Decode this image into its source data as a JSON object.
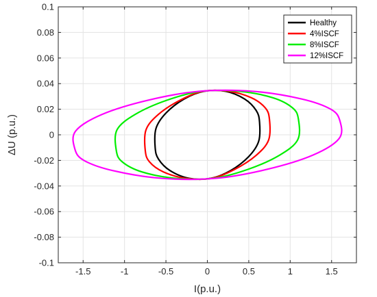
{
  "chart_data": {
    "type": "line",
    "title": "",
    "xlabel": "I(p.u.)",
    "ylabel": "ΔU (p.u.)",
    "xlim": [
      -1.8,
      1.8
    ],
    "ylim": [
      -0.1,
      0.1
    ],
    "xticks": [
      -1.5,
      -1,
      -0.5,
      0,
      0.5,
      1,
      1.5
    ],
    "xtick_labels": [
      "-1.5",
      "-1",
      "-0.5",
      "0",
      "0.5",
      "1",
      "1.5"
    ],
    "yticks": [
      -0.1,
      -0.08,
      -0.06,
      -0.04,
      -0.02,
      0,
      0.02,
      0.04,
      0.06,
      0.08,
      0.1
    ],
    "ytick_labels": [
      "-0.1",
      "-0.08",
      "-0.06",
      "-0.04",
      "-0.02",
      "0",
      "0.02",
      "0.04",
      "0.06",
      "0.08",
      "0.1"
    ],
    "grid": true,
    "legend_position": "top-right",
    "series": [
      {
        "name": "Healthy",
        "color": "#000000",
        "x": [
          0.63,
          0.59,
          0.45,
          0.22,
          -0.04,
          -0.28,
          -0.5,
          -0.62,
          -0.63,
          -0.59,
          -0.45,
          -0.22,
          0.04,
          0.28,
          0.5,
          0.62,
          0.63
        ],
        "y": [
          0.01,
          0.019,
          0.028,
          0.034,
          0.034,
          0.028,
          0.017,
          0.005,
          -0.01,
          -0.019,
          -0.028,
          -0.034,
          -0.034,
          -0.028,
          -0.017,
          -0.005,
          0.01
        ]
      },
      {
        "name": "4%ISCF",
        "color": "#ff0000",
        "x": [
          0.75,
          0.7,
          0.53,
          0.26,
          -0.05,
          -0.33,
          -0.59,
          -0.74,
          -0.75,
          -0.7,
          -0.53,
          -0.26,
          0.05,
          0.33,
          0.59,
          0.74,
          0.75
        ],
        "y": [
          0.012,
          0.021,
          0.029,
          0.034,
          0.034,
          0.027,
          0.016,
          0.004,
          -0.012,
          -0.021,
          -0.029,
          -0.034,
          -0.034,
          -0.027,
          -0.016,
          -0.004,
          0.012
        ]
      },
      {
        "name": "8%ISCF",
        "color": "#00ee00",
        "x": [
          1.1,
          1.03,
          0.79,
          0.38,
          -0.07,
          -0.49,
          -0.87,
          -1.09,
          -1.1,
          -1.03,
          -0.79,
          -0.38,
          0.07,
          0.49,
          0.87,
          1.09,
          1.1
        ],
        "y": [
          0.012,
          0.021,
          0.029,
          0.034,
          0.034,
          0.027,
          0.016,
          0.004,
          -0.012,
          -0.021,
          -0.029,
          -0.034,
          -0.034,
          -0.027,
          -0.016,
          -0.004,
          0.012
        ]
      },
      {
        "name": "12%ISCF",
        "color": "#ff00ff",
        "x": [
          1.6,
          1.49,
          1.14,
          0.55,
          -0.1,
          -0.72,
          -1.27,
          -1.59,
          -1.6,
          -1.49,
          -1.14,
          -0.55,
          0.1,
          0.72,
          1.27,
          1.59,
          1.6
        ],
        "y": [
          0.011,
          0.02,
          0.028,
          0.034,
          0.034,
          0.027,
          0.016,
          0.003,
          -0.011,
          -0.02,
          -0.028,
          -0.034,
          -0.034,
          -0.027,
          -0.016,
          -0.003,
          0.011
        ]
      }
    ]
  }
}
